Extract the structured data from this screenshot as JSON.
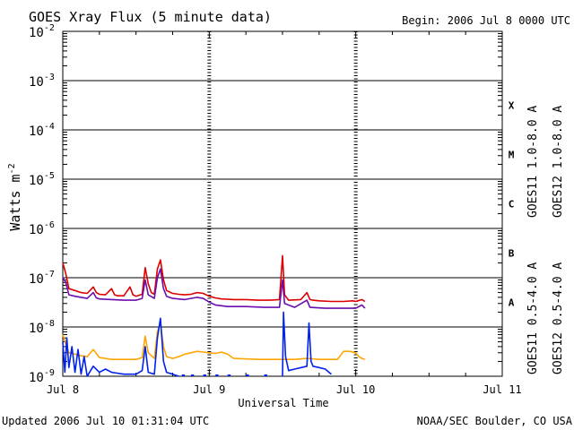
{
  "header": {
    "title": "GOES Xray Flux (5 minute data)",
    "begin": "Begin:  2006 Jul 8 0000 UTC"
  },
  "footer": {
    "updated": "Updated 2006 Jul 10 01:31:04 UTC",
    "credit": "NOAA/SEC Boulder, CO USA"
  },
  "colors": {
    "goes11_long": "#6a0dad",
    "goes12_long": "#dd0000",
    "goes11_short": "#ffa500",
    "goes12_short": "#0022ee",
    "grid": "#000000",
    "background": "#ffffff"
  },
  "chart_data": {
    "type": "line",
    "title": "GOES Xray Flux (5 minute data)",
    "xlabel": "Universal Time",
    "ylabel": "Watts m-2",
    "ylabel_parts": {
      "base": "Watts m",
      "sup": "-2"
    },
    "y_scale": "log",
    "ylim": [
      1e-09,
      0.01
    ],
    "y_ticks": [
      {
        "value": 1e-09,
        "base": "10",
        "exp": "-9"
      },
      {
        "value": 1e-08,
        "base": "10",
        "exp": "-8"
      },
      {
        "value": 1e-07,
        "base": "10",
        "exp": "-7"
      },
      {
        "value": 1e-06,
        "base": "10",
        "exp": "-6"
      },
      {
        "value": 1e-05,
        "base": "10",
        "exp": "-5"
      },
      {
        "value": 0.0001,
        "base": "10",
        "exp": "-4"
      },
      {
        "value": 0.001,
        "base": "10",
        "exp": "-3"
      },
      {
        "value": 0.01,
        "base": "10",
        "exp": "-2"
      }
    ],
    "xlim": [
      "2006-07-08T00:00",
      "2006-07-11T00:00"
    ],
    "x_ticks": [
      {
        "value": "2006-07-08T00:00",
        "label": "Jul 8"
      },
      {
        "value": "2006-07-09T00:00",
        "label": "Jul 9"
      },
      {
        "value": "2006-07-10T00:00",
        "label": "Jul 10"
      },
      {
        "value": "2006-07-11T00:00",
        "label": "Jul 11"
      }
    ],
    "grid": true,
    "flare_classes": [
      {
        "label": "A",
        "value": 1e-08
      },
      {
        "label": "B",
        "value": 1e-07
      },
      {
        "label": "C",
        "value": 1e-06
      },
      {
        "label": "M",
        "value": 1e-05
      },
      {
        "label": "X",
        "value": 0.0001
      }
    ],
    "legend_placement": "right",
    "legend": [
      {
        "key": "goes11_long",
        "label": "GOES11 1.0-8.0 A"
      },
      {
        "key": "goes12_long",
        "label": "GOES12 1.0-8.0 A"
      },
      {
        "key": "goes11_short",
        "label": "GOES11 0.5-4.0 A"
      },
      {
        "key": "goes12_short",
        "label": "GOES12 0.5-4.0 A"
      }
    ],
    "series": [
      {
        "key": "goes12_long",
        "name": "GOES12 1.0-8.0 A",
        "points": [
          [
            "2006-07-08T00:00",
            2e-07
          ],
          [
            "2006-07-08T00:30",
            1.2e-07
          ],
          [
            "2006-07-08T01:00",
            6e-08
          ],
          [
            "2006-07-08T02:00",
            5.5e-08
          ],
          [
            "2006-07-08T03:00",
            5e-08
          ],
          [
            "2006-07-08T04:00",
            4.8e-08
          ],
          [
            "2006-07-08T05:00",
            6.5e-08
          ],
          [
            "2006-07-08T05:30",
            5e-08
          ],
          [
            "2006-07-08T06:00",
            4.6e-08
          ],
          [
            "2006-07-08T07:00",
            4.5e-08
          ],
          [
            "2006-07-08T08:00",
            6e-08
          ],
          [
            "2006-07-08T08:30",
            4.5e-08
          ],
          [
            "2006-07-08T09:00",
            4.3e-08
          ],
          [
            "2006-07-08T10:00",
            4.3e-08
          ],
          [
            "2006-07-08T11:00",
            6.5e-08
          ],
          [
            "2006-07-08T11:30",
            4.5e-08
          ],
          [
            "2006-07-08T12:00",
            4.2e-08
          ],
          [
            "2006-07-08T13:00",
            4.6e-08
          ],
          [
            "2006-07-08T13:30",
            1.6e-07
          ],
          [
            "2006-07-08T14:00",
            7.5e-08
          ],
          [
            "2006-07-08T14:30",
            5e-08
          ],
          [
            "2006-07-08T15:00",
            4.6e-08
          ],
          [
            "2006-07-08T15:30",
            1.5e-07
          ],
          [
            "2006-07-08T16:00",
            2.3e-07
          ],
          [
            "2006-07-08T16:30",
            9e-08
          ],
          [
            "2006-07-08T17:00",
            5.5e-08
          ],
          [
            "2006-07-08T18:00",
            4.8e-08
          ],
          [
            "2006-07-08T19:00",
            4.6e-08
          ],
          [
            "2006-07-08T20:00",
            4.5e-08
          ],
          [
            "2006-07-08T21:00",
            4.6e-08
          ],
          [
            "2006-07-08T22:00",
            5e-08
          ],
          [
            "2006-07-08T23:00",
            4.8e-08
          ],
          [
            "2006-07-09T00:00",
            4.2e-08
          ],
          [
            "2006-07-09T01:00",
            3.9e-08
          ],
          [
            "2006-07-09T02:00",
            3.7e-08
          ],
          [
            "2006-07-09T04:00",
            3.6e-08
          ],
          [
            "2006-07-09T06:00",
            3.6e-08
          ],
          [
            "2006-07-09T08:00",
            3.5e-08
          ],
          [
            "2006-07-09T10:00",
            3.5e-08
          ],
          [
            "2006-07-09T11:30",
            3.6e-08
          ],
          [
            "2006-07-09T12:00",
            2.8e-07
          ],
          [
            "2006-07-09T12:20",
            4.5e-08
          ],
          [
            "2006-07-09T13:00",
            3.5e-08
          ],
          [
            "2006-07-09T15:00",
            3.6e-08
          ],
          [
            "2006-07-09T16:00",
            5e-08
          ],
          [
            "2006-07-09T16:30",
            3.6e-08
          ],
          [
            "2006-07-09T17:00",
            3.5e-08
          ],
          [
            "2006-07-09T18:00",
            3.4e-08
          ],
          [
            "2006-07-09T20:00",
            3.3e-08
          ],
          [
            "2006-07-09T22:00",
            3.3e-08
          ],
          [
            "2006-07-09T23:30",
            3.4e-08
          ],
          [
            "2006-07-10T00:00",
            3.3e-08
          ],
          [
            "2006-07-10T01:00",
            3.6e-08
          ],
          [
            "2006-07-10T01:30",
            3.3e-08
          ]
        ]
      },
      {
        "key": "goes11_long",
        "name": "GOES11 1.0-8.0 A",
        "points": [
          [
            "2006-07-08T00:00",
            1e-07
          ],
          [
            "2006-07-08T00:30",
            8e-08
          ],
          [
            "2006-07-08T01:00",
            4.5e-08
          ],
          [
            "2006-07-08T02:00",
            4.2e-08
          ],
          [
            "2006-07-08T03:00",
            4e-08
          ],
          [
            "2006-07-08T04:00",
            3.8e-08
          ],
          [
            "2006-07-08T05:00",
            5e-08
          ],
          [
            "2006-07-08T05:30",
            3.9e-08
          ],
          [
            "2006-07-08T06:00",
            3.7e-08
          ],
          [
            "2006-07-08T08:00",
            3.6e-08
          ],
          [
            "2006-07-08T10:00",
            3.5e-08
          ],
          [
            "2006-07-08T12:00",
            3.5e-08
          ],
          [
            "2006-07-08T13:00",
            3.8e-08
          ],
          [
            "2006-07-08T13:30",
            9e-08
          ],
          [
            "2006-07-08T14:00",
            4.5e-08
          ],
          [
            "2006-07-08T15:00",
            3.8e-08
          ],
          [
            "2006-07-08T15:30",
            1e-07
          ],
          [
            "2006-07-08T16:00",
            1.5e-07
          ],
          [
            "2006-07-08T16:30",
            6e-08
          ],
          [
            "2006-07-08T17:00",
            4.2e-08
          ],
          [
            "2006-07-08T18:00",
            3.8e-08
          ],
          [
            "2006-07-08T20:00",
            3.6e-08
          ],
          [
            "2006-07-08T22:00",
            4e-08
          ],
          [
            "2006-07-08T23:00",
            3.8e-08
          ],
          [
            "2006-07-09T00:00",
            3.2e-08
          ],
          [
            "2006-07-09T01:00",
            2.8e-08
          ],
          [
            "2006-07-09T03:00",
            2.6e-08
          ],
          [
            "2006-07-09T06:00",
            2.6e-08
          ],
          [
            "2006-07-09T09:00",
            2.5e-08
          ],
          [
            "2006-07-09T11:30",
            2.5e-08
          ],
          [
            "2006-07-09T12:00",
            9e-08
          ],
          [
            "2006-07-09T12:20",
            3e-08
          ],
          [
            "2006-07-09T14:00",
            2.5e-08
          ],
          [
            "2006-07-09T16:00",
            3.5e-08
          ],
          [
            "2006-07-09T16:30",
            2.5e-08
          ],
          [
            "2006-07-09T19:00",
            2.4e-08
          ],
          [
            "2006-07-09T22:00",
            2.4e-08
          ],
          [
            "2006-07-10T00:00",
            2.4e-08
          ],
          [
            "2006-07-10T01:00",
            2.8e-08
          ],
          [
            "2006-07-10T01:30",
            2.4e-08
          ]
        ]
      },
      {
        "key": "goes11_short",
        "name": "GOES11 0.5-4.0 A",
        "points": [
          [
            "2006-07-08T00:00",
            7e-09
          ],
          [
            "2006-07-08T00:30",
            4.5e-09
          ],
          [
            "2006-07-08T01:00",
            3e-09
          ],
          [
            "2006-07-08T02:00",
            2.8e-09
          ],
          [
            "2006-07-08T03:00",
            2.6e-09
          ],
          [
            "2006-07-08T04:00",
            2.5e-09
          ],
          [
            "2006-07-08T05:00",
            3.5e-09
          ],
          [
            "2006-07-08T06:00",
            2.4e-09
          ],
          [
            "2006-07-08T08:00",
            2.2e-09
          ],
          [
            "2006-07-08T10:00",
            2.2e-09
          ],
          [
            "2006-07-08T12:00",
            2.2e-09
          ],
          [
            "2006-07-08T13:00",
            2.4e-09
          ],
          [
            "2006-07-08T13:30",
            6.5e-09
          ],
          [
            "2006-07-08T14:00",
            3e-09
          ],
          [
            "2006-07-08T15:00",
            2.3e-09
          ],
          [
            "2006-07-08T15:30",
            8e-09
          ],
          [
            "2006-07-08T16:00",
            1.2e-08
          ],
          [
            "2006-07-08T16:30",
            4e-09
          ],
          [
            "2006-07-08T17:00",
            2.5e-09
          ],
          [
            "2006-07-08T18:00",
            2.3e-09
          ],
          [
            "2006-07-08T19:00",
            2.5e-09
          ],
          [
            "2006-07-08T20:00",
            2.8e-09
          ],
          [
            "2006-07-08T21:00",
            3e-09
          ],
          [
            "2006-07-08T22:00",
            3.2e-09
          ],
          [
            "2006-07-08T23:00",
            3.1e-09
          ],
          [
            "2006-07-09T00:00",
            3e-09
          ],
          [
            "2006-07-09T01:00",
            2.9e-09
          ],
          [
            "2006-07-09T02:00",
            3.1e-09
          ],
          [
            "2006-07-09T03:00",
            2.8e-09
          ],
          [
            "2006-07-09T04:00",
            2.3e-09
          ],
          [
            "2006-07-09T08:00",
            2.2e-09
          ],
          [
            "2006-07-09T11:30",
            2.2e-09
          ],
          [
            "2006-07-09T12:00",
            2.2e-09
          ],
          [
            "2006-07-09T14:00",
            2.2e-09
          ],
          [
            "2006-07-09T16:00",
            2.3e-09
          ],
          [
            "2006-07-09T18:00",
            2.2e-09
          ],
          [
            "2006-07-09T21:00",
            2.2e-09
          ],
          [
            "2006-07-09T22:00",
            3.2e-09
          ],
          [
            "2006-07-09T23:00",
            3.2e-09
          ],
          [
            "2006-07-10T00:00",
            3e-09
          ],
          [
            "2006-07-10T00:30",
            2.5e-09
          ],
          [
            "2006-07-10T01:00",
            2.3e-09
          ],
          [
            "2006-07-10T01:30",
            2.2e-09
          ]
        ]
      },
      {
        "key": "goes12_short",
        "name": "GOES12 0.5-4.0 A",
        "points": [
          [
            "2006-07-08T00:00",
            5e-09
          ],
          [
            "2006-07-08T00:20",
            1.2e-09
          ],
          [
            "2006-07-08T00:40",
            6e-09
          ],
          [
            "2006-07-08T01:00",
            1.5e-09
          ],
          [
            "2006-07-08T01:30",
            4e-09
          ],
          [
            "2006-07-08T02:00",
            1.2e-09
          ],
          [
            "2006-07-08T02:30",
            3.5e-09
          ],
          [
            "2006-07-08T03:00",
            1.1e-09
          ],
          [
            "2006-07-08T03:30",
            2.5e-09
          ],
          [
            "2006-07-08T04:00",
            1e-09
          ],
          [
            "2006-07-08T05:00",
            1.6e-09
          ],
          [
            "2006-07-08T06:00",
            1.2e-09
          ],
          [
            "2006-07-08T07:00",
            1.4e-09
          ],
          [
            "2006-07-08T08:00",
            1.2e-09
          ],
          [
            "2006-07-08T10:00",
            1.1e-09
          ],
          [
            "2006-07-08T12:00",
            1.1e-09
          ],
          [
            "2006-07-08T13:00",
            1.3e-09
          ],
          [
            "2006-07-08T13:30",
            4e-09
          ],
          [
            "2006-07-08T14:00",
            1.2e-09
          ],
          [
            "2006-07-08T15:00",
            1.1e-09
          ],
          [
            "2006-07-08T15:30",
            6e-09
          ],
          [
            "2006-07-08T16:00",
            1.5e-08
          ],
          [
            "2006-07-08T16:30",
            2e-09
          ],
          [
            "2006-07-08T17:00",
            1.2e-09
          ],
          [
            "2006-07-08T18:00",
            1.1e-09
          ],
          [
            "2006-07-08T19:00",
            1e-09
          ]
        ]
      },
      {
        "key": "goes12_short",
        "name": "GOES12 0.5-4.0 A",
        "points": [
          [
            "2006-07-09T12:00",
            1e-09
          ],
          [
            "2006-07-09T12:10",
            2e-08
          ],
          [
            "2006-07-09T12:30",
            2.5e-09
          ],
          [
            "2006-07-09T13:00",
            1.3e-09
          ],
          [
            "2006-07-09T14:00",
            1.4e-09
          ],
          [
            "2006-07-09T16:00",
            1.6e-09
          ],
          [
            "2006-07-09T16:20",
            1.2e-08
          ],
          [
            "2006-07-09T16:40",
            2e-09
          ],
          [
            "2006-07-09T17:00",
            1.6e-09
          ],
          [
            "2006-07-09T18:00",
            1.5e-09
          ],
          [
            "2006-07-09T19:00",
            1.4e-09
          ],
          [
            "2006-07-09T20:00",
            1.1e-09
          ]
        ]
      }
    ],
    "dotted_gaps": [
      [
        "2006-07-08T19:30",
        "2006-07-08T20:00"
      ],
      [
        "2006-07-08T21:00",
        "2006-07-08T21:30"
      ],
      [
        "2006-07-08T23:00",
        "2006-07-08T23:30"
      ],
      [
        "2006-07-09T01:00",
        "2006-07-09T01:30"
      ],
      [
        "2006-07-09T03:00",
        "2006-07-09T03:30"
      ],
      [
        "2006-07-09T06:00",
        "2006-07-09T06:30"
      ],
      [
        "2006-07-09T09:00",
        "2006-07-09T09:30"
      ]
    ]
  }
}
